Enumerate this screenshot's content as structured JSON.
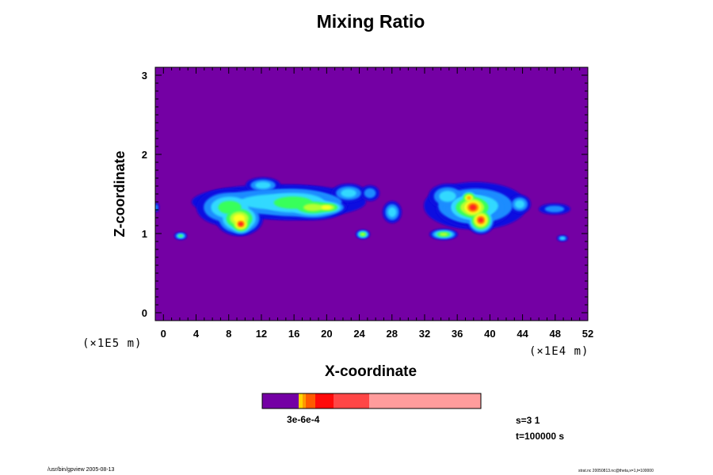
{
  "chart_data": {
    "type": "heatmap",
    "title": "Mixing Ratio",
    "xlabel": "X-coordinate",
    "ylabel": "Z-coordinate",
    "x_unit": "(×1E4 m)",
    "y_unit": "(×1E5 m)",
    "xlim": [
      -1,
      52
    ],
    "ylim": [
      -0.1,
      3.1
    ],
    "x_ticks": [
      0,
      4,
      8,
      12,
      16,
      20,
      24,
      28,
      32,
      36,
      40,
      44,
      48,
      52
    ],
    "y_ticks": [
      0,
      1,
      2,
      3
    ],
    "background_color": "#7400a4",
    "colors": [
      "#7400a4",
      "#1010e0",
      "#1a8cff",
      "#33d9ff",
      "#39ff5a",
      "#b4ff32",
      "#ffff20",
      "#ff9a00",
      "#ff2020"
    ],
    "colorbar_label": "3e-6e-4",
    "colorbar_colors": [
      "#7400a4",
      "#ffd400",
      "#ff9a00",
      "#ff5a00",
      "#ff0a0a",
      "#ff4646",
      "#ff9c9c"
    ]
  },
  "info": {
    "s": "s=3 1",
    "t": "t=100000 s"
  },
  "footer": {
    "left": "/usr/bin/gpview 2005-08-13",
    "right": "strat.nc 20050813.nc@theta,x=1,t=100000"
  }
}
